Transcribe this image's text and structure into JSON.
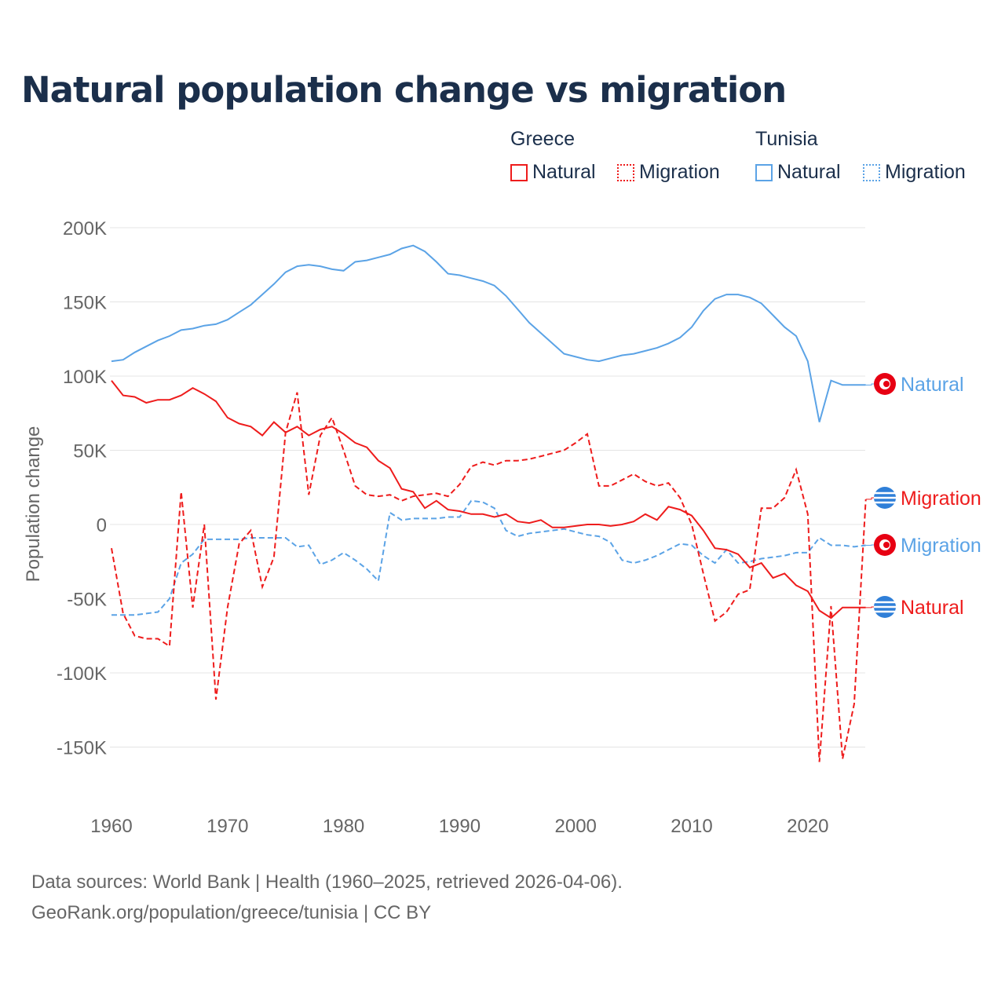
{
  "chart_data": {
    "type": "line",
    "title": "Natural population change vs migration",
    "xlabel": "",
    "ylabel": "Population change",
    "xlim": [
      1960,
      2025
    ],
    "ylim": [
      -150000,
      200000
    ],
    "yticks": [
      200000,
      150000,
      100000,
      50000,
      0,
      -50000,
      -100000,
      -150000
    ],
    "ytick_labels": [
      "200K",
      "150K",
      "100K",
      "50K",
      "0",
      "-50K",
      "-100K",
      "-150K"
    ],
    "xticks": [
      1960,
      1970,
      1980,
      1990,
      2000,
      2010,
      2020
    ],
    "xtick_labels": [
      "1960",
      "1970",
      "1980",
      "1990",
      "2000",
      "2010",
      "2020"
    ],
    "grid": true,
    "legend_placement": "top-right",
    "legend_groups": [
      "Greece",
      "Tunisia"
    ],
    "start_year": 1960,
    "series": [
      {
        "name": "Natural",
        "country": "Tunisia",
        "color": "#5ba3e6",
        "dash": false,
        "end_label": "Natural",
        "values": [
          110,
          111,
          116,
          120,
          124,
          127,
          131,
          132,
          134,
          135,
          138,
          143,
          148,
          155,
          162,
          170,
          174,
          175,
          174,
          172,
          171,
          177,
          178,
          180,
          182,
          186,
          188,
          184,
          177,
          169,
          168,
          166,
          164,
          161,
          154,
          145,
          136,
          129,
          122,
          115,
          113,
          111,
          110,
          112,
          114,
          115,
          117,
          119,
          122,
          126,
          133,
          144,
          152,
          155,
          155,
          153,
          149,
          141,
          133,
          127,
          110,
          69,
          97,
          94,
          94,
          94
        ]
      },
      {
        "name": "Migration",
        "country": "Tunisia",
        "color": "#5ba3e6",
        "dash": true,
        "end_label": "Migration",
        "values": [
          -61,
          -61,
          -61,
          -60,
          -59,
          -50,
          -26,
          -20,
          -10,
          -10,
          -10,
          -10,
          -9,
          -9,
          -9,
          -9,
          -15,
          -14,
          -27,
          -24,
          -19,
          -24,
          -30,
          -38,
          8,
          3,
          4,
          4,
          4,
          5,
          5,
          16,
          15,
          11,
          -4,
          -8,
          -6,
          -5,
          -4,
          -3,
          -5,
          -7,
          -8,
          -12,
          -24,
          -26,
          -24,
          -21,
          -17,
          -13,
          -14,
          -21,
          -26,
          -17,
          -26,
          -25,
          -23,
          -22,
          -21,
          -19,
          -19,
          -9,
          -14,
          -14,
          -15,
          -14
        ]
      },
      {
        "name": "Natural",
        "country": "Greece",
        "color": "#ee1c1c",
        "dash": false,
        "end_label": "Natural",
        "values": [
          97,
          87,
          86,
          82,
          84,
          84,
          87,
          92,
          88,
          83,
          72,
          68,
          66,
          60,
          69,
          62,
          66,
          60,
          64,
          66,
          61,
          55,
          52,
          43,
          38,
          24,
          22,
          11,
          16,
          10,
          9,
          7,
          7,
          5,
          7,
          2,
          1,
          3,
          -2,
          -2,
          -1,
          0,
          0,
          -1,
          0,
          2,
          7,
          3,
          12,
          10,
          6,
          -4,
          -16,
          -17,
          -20,
          -29,
          -26,
          -36,
          -33,
          -41,
          -45,
          -58,
          -63,
          -56,
          -56,
          -56
        ]
      },
      {
        "name": "Migration",
        "country": "Greece",
        "color": "#ee1c1c",
        "dash": true,
        "end_label": "Migration",
        "values": [
          -16,
          -60,
          -75,
          -77,
          -77,
          -82,
          22,
          -56,
          0,
          -118,
          -56,
          -13,
          -4,
          -42,
          -22,
          62,
          89,
          20,
          60,
          72,
          50,
          26,
          20,
          19,
          20,
          16,
          19,
          20,
          21,
          19,
          27,
          39,
          42,
          40,
          43,
          43,
          44,
          46,
          48,
          50,
          55,
          61,
          26,
          26,
          30,
          34,
          29,
          26,
          28,
          18,
          0,
          -33,
          -65,
          -59,
          -47,
          -44,
          11,
          11,
          18,
          37,
          7,
          -160,
          -55,
          -158,
          -121,
          17
        ]
      }
    ],
    "value_unit": "thousands"
  },
  "legend": {
    "greece": "Greece",
    "tunisia": "Tunisia",
    "natural": "Natural",
    "migration": "Migration"
  },
  "footer": {
    "line1": "Data sources: World Bank | Health (1960–2025, retrieved 2026-04-06).",
    "line2": "GeoRank.org/population/greece/tunisia | CC BY"
  }
}
